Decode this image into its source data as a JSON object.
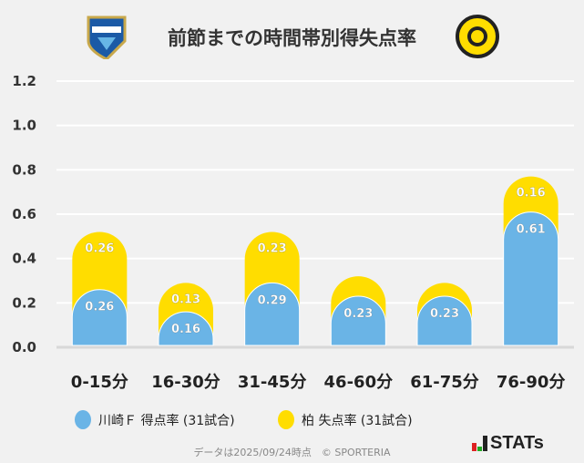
{
  "title": "前節までの時間帯別得失点率",
  "legend": [
    {
      "label": "川崎Ｆ 得点率 (31試合)",
      "color": "#6ab4e6"
    },
    {
      "label": "柏 失点率 (31試合)",
      "color": "#ffdd00"
    }
  ],
  "footer": "データは2025/09/24時点　© SPORTERIA",
  "brand": "STATs",
  "chart_data": {
    "type": "bar",
    "stacked": true,
    "title": "前節までの時間帯別得失点率",
    "categories": [
      "0-15分",
      "16-30分",
      "31-45分",
      "46-60分",
      "61-75分",
      "76-90分"
    ],
    "series": [
      {
        "name": "川崎Ｆ 得点率 (31試合)",
        "values": [
          0.26,
          0.16,
          0.29,
          0.23,
          0.23,
          0.61
        ],
        "labels": [
          "0.26",
          "0.16",
          "0.29",
          "0.23",
          "0.23",
          "0.61"
        ],
        "color": "#6ab4e6"
      },
      {
        "name": "柏 失点率 (31試合)",
        "values": [
          0.26,
          0.13,
          0.23,
          0.09,
          0.06,
          0.16
        ],
        "labels": [
          "0.26",
          "0.13",
          "0.23",
          "",
          "",
          "0.16"
        ],
        "color": "#ffdd00"
      }
    ],
    "yticks": [
      "0.0",
      "0.2",
      "0.4",
      "0.6",
      "0.8",
      "1.0",
      "1.2"
    ],
    "ylim": [
      0,
      1.2
    ],
    "grid": true,
    "legend_position": "bottom"
  }
}
